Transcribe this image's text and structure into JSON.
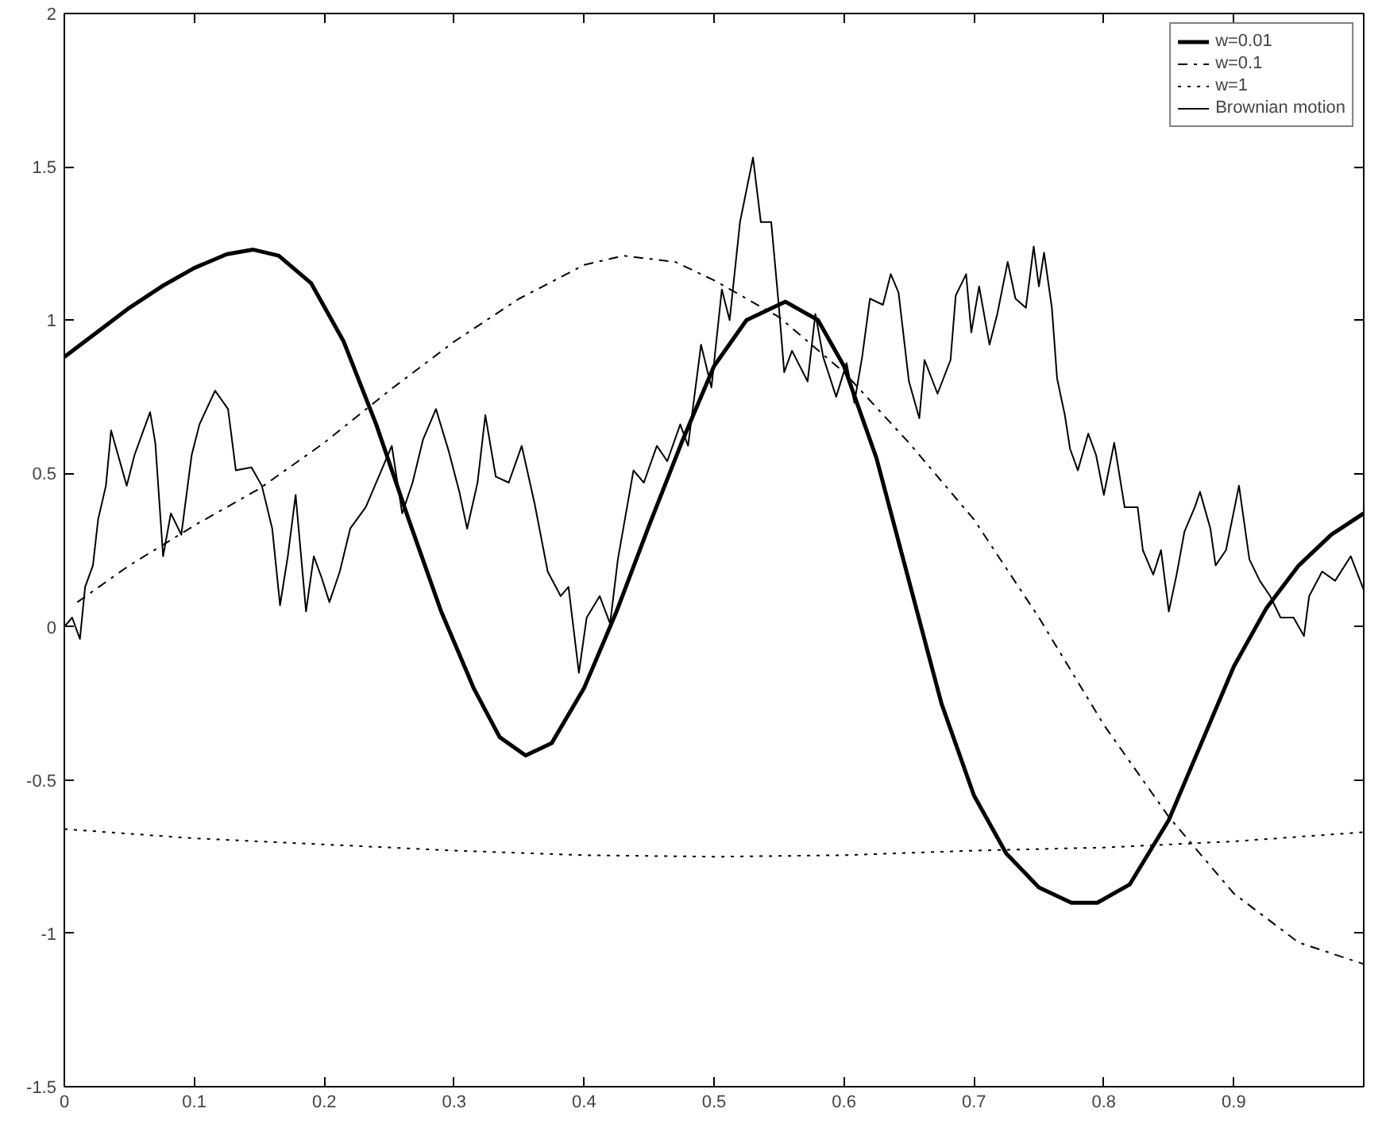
{
  "chart_data": {
    "type": "line",
    "xlim": [
      0,
      1
    ],
    "ylim": [
      -1.5,
      2
    ],
    "xticks": [
      0,
      0.1,
      0.2,
      0.3,
      0.4,
      0.5,
      0.6,
      0.7,
      0.8,
      0.9
    ],
    "yticks": [
      -1.5,
      -1,
      -0.5,
      0,
      0.5,
      1,
      1.5,
      2
    ],
    "grid": false,
    "legend": "top right",
    "marker": "none",
    "series": [
      {
        "name": "w=0.01",
        "color": "#000000",
        "line_style": "solid",
        "x": [
          0,
          0.025,
          0.05,
          0.075,
          0.1,
          0.125,
          0.145,
          0.165,
          0.19,
          0.215,
          0.24,
          0.265,
          0.29,
          0.315,
          0.335,
          0.355,
          0.375,
          0.4,
          0.425,
          0.45,
          0.475,
          0.5,
          0.525,
          0.555,
          0.58,
          0.6,
          0.625,
          0.65,
          0.675,
          0.7,
          0.725,
          0.75,
          0.775,
          0.795,
          0.82,
          0.85,
          0.875,
          0.9,
          0.925,
          0.95,
          0.975,
          1
        ],
        "values": [
          0.88,
          0.96,
          1.04,
          1.11,
          1.17,
          1.215,
          1.23,
          1.21,
          1.12,
          0.93,
          0.66,
          0.35,
          0.05,
          -0.2,
          -0.36,
          -0.42,
          -0.38,
          -0.2,
          0.05,
          0.33,
          0.6,
          0.85,
          1.0,
          1.06,
          1.0,
          0.85,
          0.55,
          0.15,
          -0.25,
          -0.55,
          -0.74,
          -0.85,
          -0.9,
          -0.9,
          -0.84,
          -0.63,
          -0.38,
          -0.13,
          0.06,
          0.2,
          0.3,
          0.37
        ]
      },
      {
        "name": "w=0.1",
        "color": "#000000",
        "line_style": "dashdot",
        "x": [
          0.01,
          0.05,
          0.1,
          0.15,
          0.2,
          0.25,
          0.3,
          0.35,
          0.4,
          0.43,
          0.47,
          0.5,
          0.55,
          0.6,
          0.65,
          0.7,
          0.75,
          0.8,
          0.85,
          0.9,
          0.95,
          1
        ],
        "values": [
          0.08,
          0.2,
          0.33,
          0.45,
          0.6,
          0.77,
          0.93,
          1.07,
          1.18,
          1.21,
          1.19,
          1.13,
          1.01,
          0.83,
          0.6,
          0.35,
          0.03,
          -0.32,
          -0.62,
          -0.87,
          -1.03,
          -1.1
        ]
      },
      {
        "name": "w=1",
        "color": "#000000",
        "line_style": "dotted",
        "x": [
          0,
          0.1,
          0.2,
          0.3,
          0.4,
          0.5,
          0.6,
          0.7,
          0.8,
          0.9,
          1
        ],
        "values": [
          -0.66,
          -0.69,
          -0.71,
          -0.73,
          -0.745,
          -0.75,
          -0.745,
          -0.73,
          -0.72,
          -0.7,
          -0.67
        ]
      },
      {
        "name": "Brownian motion",
        "color": "#000000",
        "line_style": "solid",
        "x": [
          0,
          0.006,
          0.012,
          0.016,
          0.022,
          0.026,
          0.032,
          0.036,
          0.048,
          0.054,
          0.06,
          0.066,
          0.07,
          0.076,
          0.082,
          0.09,
          0.098,
          0.104,
          0.116,
          0.126,
          0.132,
          0.144,
          0.152,
          0.16,
          0.166,
          0.172,
          0.178,
          0.186,
          0.192,
          0.198,
          0.204,
          0.212,
          0.22,
          0.232,
          0.244,
          0.252,
          0.26,
          0.268,
          0.276,
          0.286,
          0.296,
          0.304,
          0.31,
          0.318,
          0.324,
          0.332,
          0.342,
          0.352,
          0.362,
          0.372,
          0.382,
          0.388,
          0.396,
          0.402,
          0.412,
          0.42,
          0.426,
          0.438,
          0.446,
          0.456,
          0.464,
          0.474,
          0.48,
          0.49,
          0.498,
          0.506,
          0.512,
          0.52,
          0.53,
          0.536,
          0.544,
          0.55,
          0.554,
          0.56,
          0.572,
          0.578,
          0.584,
          0.594,
          0.602,
          0.608,
          0.614,
          0.62,
          0.63,
          0.636,
          0.642,
          0.65,
          0.658,
          0.662,
          0.672,
          0.682,
          0.686,
          0.694,
          0.698,
          0.704,
          0.712,
          0.718,
          0.726,
          0.732,
          0.74,
          0.746,
          0.75,
          0.754,
          0.76,
          0.764,
          0.77,
          0.774,
          0.78,
          0.788,
          0.794,
          0.8,
          0.808,
          0.816,
          0.826,
          0.83,
          0.838,
          0.844,
          0.85,
          0.856,
          0.862,
          0.87,
          0.874,
          0.882,
          0.886,
          0.894,
          0.904,
          0.912,
          0.92,
          0.928,
          0.936,
          0.946,
          0.954,
          0.958,
          0.968,
          0.978,
          0.99,
          1
        ],
        "values": [
          0,
          0.03,
          -0.04,
          0.13,
          0.2,
          0.35,
          0.46,
          0.64,
          0.46,
          0.56,
          0.63,
          0.7,
          0.6,
          0.23,
          0.37,
          0.3,
          0.56,
          0.66,
          0.77,
          0.71,
          0.51,
          0.52,
          0.46,
          0.32,
          0.07,
          0.23,
          0.43,
          0.05,
          0.23,
          0.16,
          0.08,
          0.18,
          0.32,
          0.39,
          0.51,
          0.59,
          0.37,
          0.47,
          0.61,
          0.71,
          0.57,
          0.44,
          0.32,
          0.47,
          0.69,
          0.49,
          0.47,
          0.59,
          0.4,
          0.18,
          0.1,
          0.13,
          -0.15,
          0.03,
          0.1,
          0.01,
          0.22,
          0.51,
          0.47,
          0.59,
          0.54,
          0.66,
          0.59,
          0.92,
          0.78,
          1.1,
          1.0,
          1.32,
          1.53,
          1.32,
          1.32,
          1.04,
          0.83,
          0.9,
          0.8,
          1.02,
          0.88,
          0.75,
          0.86,
          0.73,
          0.88,
          1.07,
          1.05,
          1.15,
          1.09,
          0.8,
          0.68,
          0.87,
          0.76,
          0.87,
          1.08,
          1.15,
          0.96,
          1.11,
          0.92,
          1.02,
          1.19,
          1.07,
          1.04,
          1.24,
          1.11,
          1.22,
          1.04,
          0.81,
          0.69,
          0.58,
          0.51,
          0.63,
          0.56,
          0.43,
          0.6,
          0.39,
          0.39,
          0.25,
          0.17,
          0.25,
          0.05,
          0.17,
          0.31,
          0.39,
          0.44,
          0.32,
          0.2,
          0.25,
          0.46,
          0.22,
          0.15,
          0.1,
          0.03,
          0.03,
          -0.03,
          0.1,
          0.18,
          0.15,
          0.23,
          0.12
        ]
      }
    ]
  }
}
